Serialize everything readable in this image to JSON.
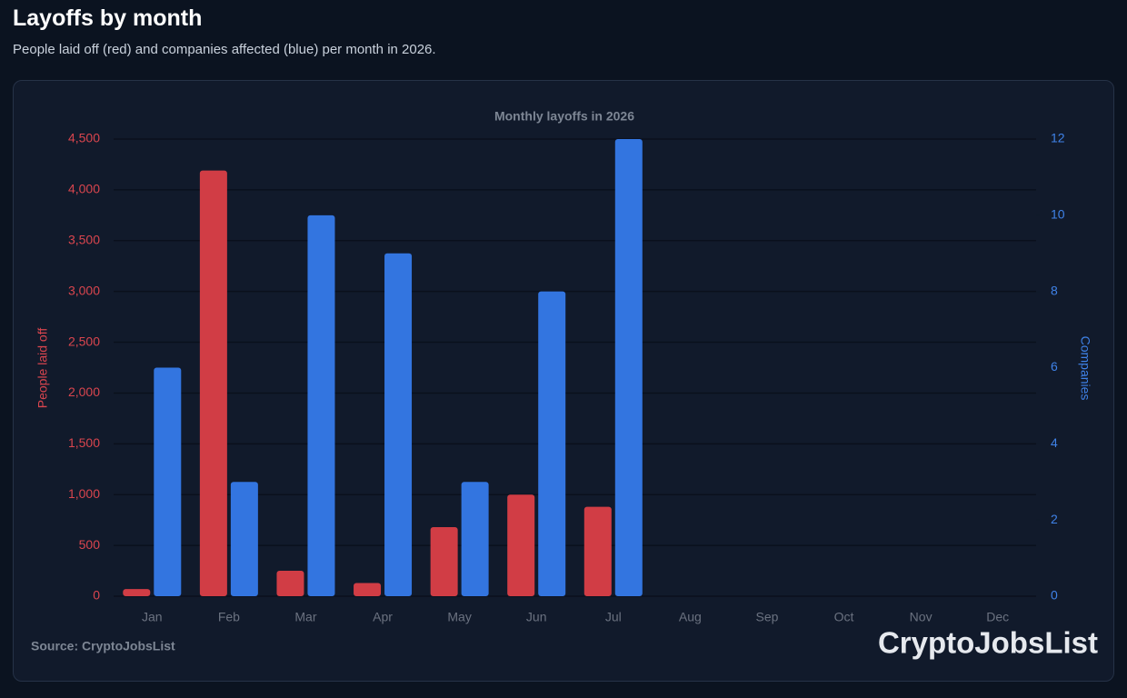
{
  "header": {
    "title": "Layoffs by month",
    "subtitle": "People laid off (red) and companies affected (blue) per month in 2026."
  },
  "chart_data": {
    "type": "bar",
    "title": "Monthly layoffs in 2026",
    "categories": [
      "Jan",
      "Feb",
      "Mar",
      "Apr",
      "May",
      "Jun",
      "Jul",
      "Aug",
      "Sep",
      "Oct",
      "Nov",
      "Dec"
    ],
    "series": [
      {
        "color": "#d13d45",
        "axis": "y",
        "values": [
          70,
          4190,
          250,
          130,
          680,
          1000,
          880,
          null,
          null,
          null,
          null,
          null
        ]
      },
      {
        "color": "#3375e0",
        "axis": "y2",
        "values": [
          6,
          3,
          10,
          9,
          3,
          8,
          12,
          null,
          null,
          null,
          null,
          null
        ]
      }
    ],
    "ylabel": "People laid off",
    "y2label": "Companies",
    "ylim": [
      0,
      4500
    ],
    "yticks": [
      0,
      500,
      {
        "value": 1000,
        "label": "1,000"
      },
      {
        "value": 1500,
        "label": "1,500"
      },
      {
        "value": 2000,
        "label": "2,000"
      },
      {
        "value": 2500,
        "label": "2,500"
      },
      {
        "value": 3000,
        "label": "3,000"
      },
      {
        "value": 3500,
        "label": "3,500"
      },
      {
        "value": 4000,
        "label": "4,000"
      },
      {
        "value": 4500,
        "label": "4,500"
      }
    ],
    "y2lim": [
      0,
      12
    ],
    "y2ticks": [
      0,
      2,
      4,
      6,
      8,
      10,
      12
    ],
    "grid": true,
    "source": "Source: CryptoJobsList",
    "brand": "CryptoJobsList"
  }
}
